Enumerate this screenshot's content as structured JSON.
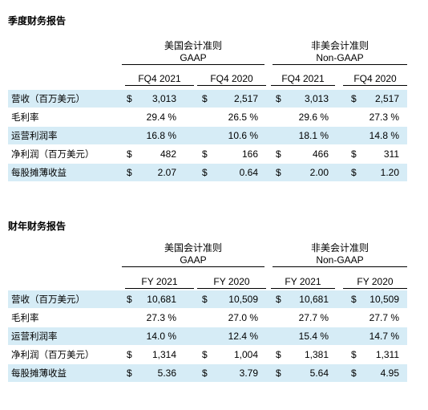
{
  "quarterly": {
    "title": "季度财务报告",
    "gaap_line1": "美国会计准则",
    "gaap_line2": "GAAP",
    "nongaap_line1": "非美会计准则",
    "nongaap_line2": "Non-GAAP",
    "col_headers": [
      "FQ4 2021",
      "FQ4 2020",
      "FQ4 2021",
      "FQ4 2020"
    ],
    "rows": [
      {
        "label": "营收（百万美元）",
        "shade": true,
        "values": [
          {
            "cur": "$",
            "val": "3,013"
          },
          {
            "cur": "$",
            "val": "2,517"
          },
          {
            "cur": "$",
            "val": "3,013"
          },
          {
            "cur": "$",
            "val": "2,517"
          }
        ]
      },
      {
        "label": "毛利率",
        "shade": false,
        "values": [
          {
            "cur": "",
            "val": "29.4 %"
          },
          {
            "cur": "",
            "val": "26.5 %"
          },
          {
            "cur": "",
            "val": "29.6 %"
          },
          {
            "cur": "",
            "val": "27.3 %"
          }
        ]
      },
      {
        "label": "运营利润率",
        "shade": true,
        "values": [
          {
            "cur": "",
            "val": "16.8 %"
          },
          {
            "cur": "",
            "val": "10.6 %"
          },
          {
            "cur": "",
            "val": "18.1 %"
          },
          {
            "cur": "",
            "val": "14.8 %"
          }
        ]
      },
      {
        "label": "净利润（百万美元）",
        "shade": false,
        "values": [
          {
            "cur": "$",
            "val": "482"
          },
          {
            "cur": "$",
            "val": "166"
          },
          {
            "cur": "$",
            "val": "466"
          },
          {
            "cur": "$",
            "val": "311"
          }
        ]
      },
      {
        "label": "每股摊薄收益",
        "shade": true,
        "values": [
          {
            "cur": "$",
            "val": "2.07"
          },
          {
            "cur": "$",
            "val": "0.64"
          },
          {
            "cur": "$",
            "val": "2.00"
          },
          {
            "cur": "$",
            "val": "1.20"
          }
        ]
      }
    ]
  },
  "annual": {
    "title": "财年财务报告",
    "gaap_line1": "美国会计准则",
    "gaap_line2": "GAAP",
    "nongaap_line1": "非美会计准则",
    "nongaap_line2": "Non-GAAP",
    "col_headers": [
      "FY 2021",
      "FY 2020",
      "FY 2021",
      "FY 2020"
    ],
    "rows": [
      {
        "label": "营收（百万美元）",
        "shade": true,
        "values": [
          {
            "cur": "$",
            "val": "10,681"
          },
          {
            "cur": "$",
            "val": "10,509"
          },
          {
            "cur": "$",
            "val": "10,681"
          },
          {
            "cur": "$",
            "val": "10,509"
          }
        ]
      },
      {
        "label": "毛利率",
        "shade": false,
        "values": [
          {
            "cur": "",
            "val": "27.3 %"
          },
          {
            "cur": "",
            "val": "27.0 %"
          },
          {
            "cur": "",
            "val": "27.7 %"
          },
          {
            "cur": "",
            "val": "27.7 %"
          }
        ]
      },
      {
        "label": "运营利润率",
        "shade": true,
        "values": [
          {
            "cur": "",
            "val": "14.0 %"
          },
          {
            "cur": "",
            "val": "12.4 %"
          },
          {
            "cur": "",
            "val": "15.4 %"
          },
          {
            "cur": "",
            "val": "14.7 %"
          }
        ]
      },
      {
        "label": "净利润（百万美元）",
        "shade": false,
        "values": [
          {
            "cur": "$",
            "val": "1,314"
          },
          {
            "cur": "$",
            "val": "1,004"
          },
          {
            "cur": "$",
            "val": "1,381"
          },
          {
            "cur": "$",
            "val": "1,311"
          }
        ]
      },
      {
        "label": "每股摊薄收益",
        "shade": true,
        "values": [
          {
            "cur": "$",
            "val": "5.36"
          },
          {
            "cur": "$",
            "val": "3.79"
          },
          {
            "cur": "$",
            "val": "5.64"
          },
          {
            "cur": "$",
            "val": "4.95"
          }
        ]
      }
    ]
  },
  "colors": {
    "row_shade": "#d6ecf6",
    "text": "#000000"
  }
}
